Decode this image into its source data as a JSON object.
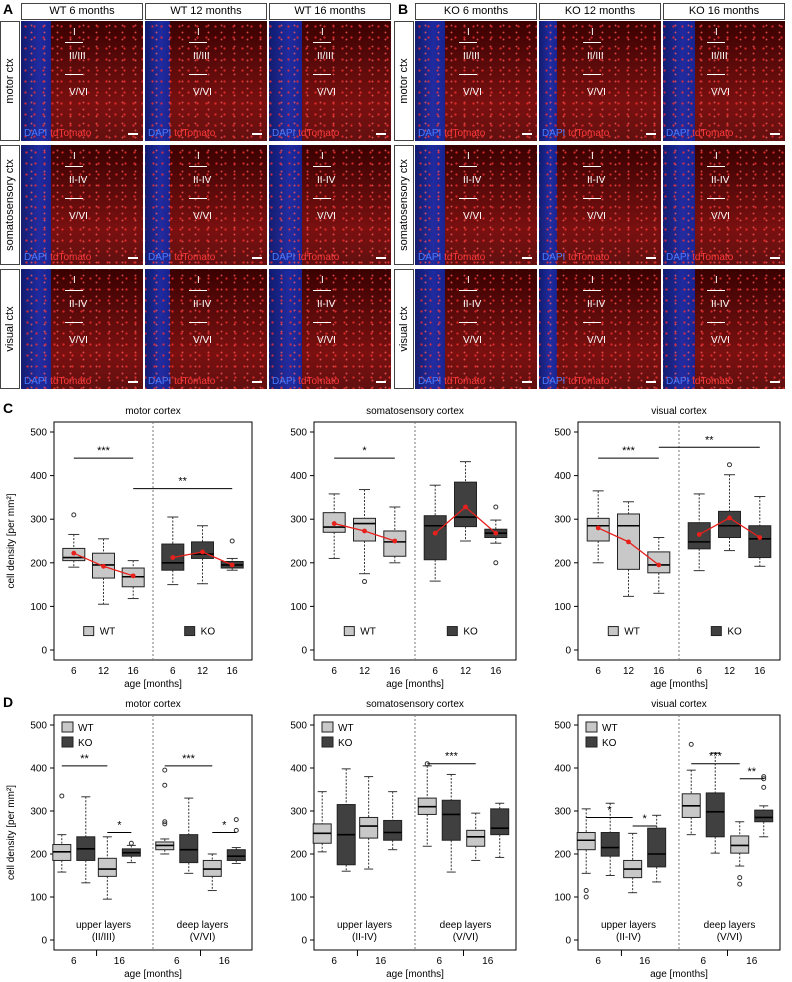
{
  "panel_labels": {
    "A": "A",
    "B": "B",
    "C": "C",
    "D": "D"
  },
  "micro": {
    "wt_cols": [
      "WT 6 months",
      "WT  12 months",
      "WT  16 months"
    ],
    "ko_cols": [
      "KO 6 months",
      "KO 12 months",
      "KO  16 months"
    ],
    "rows": [
      "motor ctx",
      "somatosensory  ctx",
      "visual ctx"
    ],
    "layer_sets": [
      [
        "I",
        "II/III",
        "V/VI"
      ],
      [
        "I",
        "II-IV",
        "V/VI"
      ],
      [
        "I",
        "II-IV",
        "V/VI"
      ]
    ],
    "dapi": "DAPI",
    "tdtomato": "tdTomato"
  },
  "colors": {
    "wt_box": "#c8c8c8",
    "ko_box": "#404040",
    "mean": "#e8201c"
  },
  "chart_data": [
    {
      "type": "box",
      "panel": "C",
      "title": "motor cortex",
      "ylabel": "cell density [per mm²]",
      "xlabel": "age [months]",
      "ylim": [
        0,
        500
      ],
      "yticks": [
        0,
        100,
        200,
        300,
        400,
        500
      ],
      "groups": [
        "6",
        "12",
        "16",
        "6",
        "12",
        "16"
      ],
      "legend": [
        "WT",
        "KO"
      ],
      "boxes": [
        {
          "group": "WT",
          "x": "6",
          "min": 190,
          "q1": 205,
          "median": 212,
          "q3": 233,
          "max": 265,
          "mean": 222,
          "outliers": [
            310
          ]
        },
        {
          "group": "WT",
          "x": "12",
          "min": 105,
          "q1": 165,
          "median": 195,
          "q3": 222,
          "max": 255,
          "mean": 192,
          "outliers": []
        },
        {
          "group": "WT",
          "x": "16",
          "min": 118,
          "q1": 145,
          "median": 168,
          "q3": 188,
          "max": 205,
          "mean": 170,
          "outliers": []
        },
        {
          "group": "KO",
          "x": "6",
          "min": 150,
          "q1": 183,
          "median": 200,
          "q3": 243,
          "max": 305,
          "mean": 212,
          "outliers": []
        },
        {
          "group": "KO",
          "x": "12",
          "min": 152,
          "q1": 210,
          "median": 220,
          "q3": 248,
          "max": 285,
          "mean": 225,
          "outliers": []
        },
        {
          "group": "KO",
          "x": "16",
          "min": 183,
          "q1": 188,
          "median": 195,
          "q3": 203,
          "max": 210,
          "mean": 195,
          "outliers": [
            250
          ]
        }
      ],
      "mean_lines": [
        [
          0,
          1,
          2
        ],
        [
          3,
          4,
          5
        ]
      ],
      "sig": [
        {
          "from": 0,
          "to": 2,
          "y": 440,
          "label": "***"
        },
        {
          "from": 2,
          "to": 5,
          "y": 370,
          "label": "**"
        }
      ]
    },
    {
      "type": "box",
      "panel": "C",
      "title": "somatosensory cortex",
      "ylabel": "",
      "xlabel": "age [months]",
      "ylim": [
        0,
        500
      ],
      "yticks": [
        0,
        100,
        200,
        300,
        400,
        500
      ],
      "groups": [
        "6",
        "12",
        "16",
        "6",
        "12",
        "16"
      ],
      "legend": [
        "WT",
        "KO"
      ],
      "boxes": [
        {
          "group": "WT",
          "x": "6",
          "min": 210,
          "q1": 270,
          "median": 282,
          "q3": 315,
          "max": 358,
          "mean": 290,
          "outliers": []
        },
        {
          "group": "WT",
          "x": "12",
          "min": 175,
          "q1": 250,
          "median": 290,
          "q3": 302,
          "max": 368,
          "mean": 273,
          "outliers": [
            157
          ]
        },
        {
          "group": "WT",
          "x": "16",
          "min": 200,
          "q1": 215,
          "median": 248,
          "q3": 273,
          "max": 328,
          "mean": 250,
          "outliers": []
        },
        {
          "group": "KO",
          "x": "6",
          "min": 158,
          "q1": 207,
          "median": 285,
          "q3": 308,
          "max": 378,
          "mean": 268,
          "outliers": []
        },
        {
          "group": "KO",
          "x": "12",
          "min": 250,
          "q1": 283,
          "median": 305,
          "q3": 385,
          "max": 432,
          "mean": 328,
          "outliers": []
        },
        {
          "group": "KO",
          "x": "16",
          "min": 245,
          "q1": 258,
          "median": 268,
          "q3": 277,
          "max": 298,
          "mean": 268,
          "outliers": [
            200,
            328
          ]
        }
      ],
      "mean_lines": [
        [
          0,
          1,
          2
        ],
        [
          3,
          4,
          5
        ]
      ],
      "sig": [
        {
          "from": 0,
          "to": 2,
          "y": 440,
          "label": "*"
        }
      ]
    },
    {
      "type": "box",
      "panel": "C",
      "title": "visual cortex",
      "ylabel": "",
      "xlabel": "age [months]",
      "ylim": [
        0,
        500
      ],
      "yticks": [
        0,
        100,
        200,
        300,
        400,
        500
      ],
      "groups": [
        "6",
        "12",
        "16",
        "6",
        "12",
        "16"
      ],
      "legend": [
        "WT",
        "KO"
      ],
      "boxes": [
        {
          "group": "WT",
          "x": "6",
          "min": 200,
          "q1": 250,
          "median": 285,
          "q3": 302,
          "max": 365,
          "mean": 280,
          "outliers": []
        },
        {
          "group": "WT",
          "x": "12",
          "min": 123,
          "q1": 185,
          "median": 285,
          "q3": 312,
          "max": 340,
          "mean": 248,
          "outliers": []
        },
        {
          "group": "WT",
          "x": "16",
          "min": 130,
          "q1": 177,
          "median": 195,
          "q3": 225,
          "max": 258,
          "mean": 195,
          "outliers": []
        },
        {
          "group": "KO",
          "x": "6",
          "min": 182,
          "q1": 232,
          "median": 248,
          "q3": 292,
          "max": 358,
          "mean": 265,
          "outliers": []
        },
        {
          "group": "KO",
          "x": "12",
          "min": 228,
          "q1": 258,
          "median": 285,
          "q3": 318,
          "max": 402,
          "mean": 303,
          "outliers": [
            425
          ]
        },
        {
          "group": "KO",
          "x": "16",
          "min": 192,
          "q1": 212,
          "median": 255,
          "q3": 285,
          "max": 352,
          "mean": 258,
          "outliers": []
        }
      ],
      "mean_lines": [
        [
          0,
          1,
          2
        ],
        [
          3,
          4,
          5
        ]
      ],
      "sig": [
        {
          "from": 0,
          "to": 2,
          "y": 440,
          "label": "***"
        },
        {
          "from": 2,
          "to": 5,
          "y": 465,
          "label": "**"
        }
      ]
    },
    {
      "type": "box",
      "panel": "D",
      "title": "motor cortex",
      "ylabel": "cell density [per mm²]",
      "xlabel": "age [months]",
      "ylim": [
        0,
        500
      ],
      "yticks": [
        0,
        100,
        200,
        300,
        400,
        500
      ],
      "groups": [
        "6",
        "16",
        "6",
        "16"
      ],
      "legend": [
        "WT",
        "KO"
      ],
      "region_labels": [
        [
          "upper layers",
          "(II/III)"
        ],
        [
          "deep layers",
          "(V/VI)"
        ]
      ],
      "boxes": [
        {
          "group": "WT",
          "x": "6",
          "min": 158,
          "q1": 185,
          "median": 205,
          "q3": 222,
          "max": 245,
          "mean": 205,
          "outliers": [
            335
          ]
        },
        {
          "group": "KO",
          "x": "6",
          "min": 133,
          "q1": 185,
          "median": 212,
          "q3": 240,
          "max": 333,
          "mean": 212,
          "outliers": []
        },
        {
          "group": "WT",
          "x": "16",
          "min": 95,
          "q1": 148,
          "median": 165,
          "q3": 190,
          "max": 240,
          "mean": 168,
          "outliers": []
        },
        {
          "group": "KO",
          "x": "16",
          "min": 180,
          "q1": 195,
          "median": 203,
          "q3": 212,
          "max": 220,
          "mean": 203,
          "outliers": [
            225
          ]
        },
        {
          "group": "WT",
          "x": "6",
          "min": 200,
          "q1": 210,
          "median": 220,
          "q3": 228,
          "max": 235,
          "mean": 218,
          "outliers": [
            395,
            360,
            270,
            275
          ]
        },
        {
          "group": "KO",
          "x": "6",
          "min": 155,
          "q1": 180,
          "median": 210,
          "q3": 245,
          "max": 330,
          "mean": 212,
          "outliers": []
        },
        {
          "group": "WT",
          "x": "16",
          "min": 115,
          "q1": 148,
          "median": 165,
          "q3": 185,
          "max": 200,
          "mean": 167,
          "outliers": []
        },
        {
          "group": "KO",
          "x": "16",
          "min": 178,
          "q1": 185,
          "median": 195,
          "q3": 210,
          "max": 215,
          "mean": 196,
          "outliers": [
            255,
            280
          ]
        }
      ],
      "sig": [
        {
          "from": 0,
          "to": 2,
          "y": 405,
          "label": "**"
        },
        {
          "from": 2,
          "to": 3,
          "y": 250,
          "label": "*"
        },
        {
          "from": 4,
          "to": 6,
          "y": 405,
          "label": "***"
        },
        {
          "from": 6,
          "to": 7,
          "y": 250,
          "label": "*"
        }
      ]
    },
    {
      "type": "box",
      "panel": "D",
      "title": "somatosensory cortex",
      "ylabel": "",
      "xlabel": "age [months]",
      "ylim": [
        0,
        500
      ],
      "yticks": [
        0,
        100,
        200,
        300,
        400,
        500
      ],
      "groups": [
        "6",
        "16",
        "6",
        "16"
      ],
      "legend": [
        "WT",
        "KO"
      ],
      "region_labels": [
        [
          "upper layers",
          "(II-IV)"
        ],
        [
          "deep layers",
          "(V/VI)"
        ]
      ],
      "boxes": [
        {
          "group": "WT",
          "x": "6",
          "min": 205,
          "q1": 225,
          "median": 248,
          "q3": 270,
          "max": 345,
          "mean": 248,
          "outliers": []
        },
        {
          "group": "KO",
          "x": "6",
          "min": 160,
          "q1": 175,
          "median": 245,
          "q3": 315,
          "max": 398,
          "mean": 245,
          "outliers": []
        },
        {
          "group": "WT",
          "x": "16",
          "min": 165,
          "q1": 237,
          "median": 265,
          "q3": 285,
          "max": 380,
          "mean": 265,
          "outliers": []
        },
        {
          "group": "KO",
          "x": "16",
          "min": 210,
          "q1": 232,
          "median": 250,
          "q3": 278,
          "max": 345,
          "mean": 252,
          "outliers": []
        },
        {
          "group": "WT",
          "x": "6",
          "min": 218,
          "q1": 292,
          "median": 310,
          "q3": 330,
          "max": 405,
          "mean": 310,
          "outliers": [
            410
          ]
        },
        {
          "group": "KO",
          "x": "6",
          "min": 158,
          "q1": 232,
          "median": 292,
          "q3": 325,
          "max": 385,
          "mean": 290,
          "outliers": []
        },
        {
          "group": "WT",
          "x": "16",
          "min": 185,
          "q1": 218,
          "median": 240,
          "q3": 255,
          "max": 295,
          "mean": 240,
          "outliers": []
        },
        {
          "group": "KO",
          "x": "16",
          "min": 192,
          "q1": 245,
          "median": 260,
          "q3": 305,
          "max": 318,
          "mean": 268,
          "outliers": []
        }
      ],
      "sig": [
        {
          "from": 4,
          "to": 6,
          "y": 410,
          "label": "***"
        }
      ]
    },
    {
      "type": "box",
      "panel": "D",
      "title": "visual cortex",
      "ylabel": "",
      "xlabel": "age [months]",
      "ylim": [
        0,
        500
      ],
      "yticks": [
        0,
        100,
        200,
        300,
        400,
        500
      ],
      "groups": [
        "6",
        "16",
        "6",
        "16"
      ],
      "legend": [
        "WT",
        "KO"
      ],
      "region_labels": [
        [
          "upper layers",
          "(II-IV)"
        ],
        [
          "deep layers",
          "(V/VI)"
        ]
      ],
      "boxes": [
        {
          "group": "WT",
          "x": "6",
          "min": 155,
          "q1": 210,
          "median": 232,
          "q3": 250,
          "max": 305,
          "mean": 232,
          "outliers": [
            100,
            115
          ]
        },
        {
          "group": "KO",
          "x": "6",
          "min": 150,
          "q1": 195,
          "median": 215,
          "q3": 250,
          "max": 318,
          "mean": 220,
          "outliers": []
        },
        {
          "group": "WT",
          "x": "16",
          "min": 110,
          "q1": 145,
          "median": 165,
          "q3": 185,
          "max": 248,
          "mean": 165,
          "outliers": []
        },
        {
          "group": "KO",
          "x": "16",
          "min": 135,
          "q1": 170,
          "median": 200,
          "q3": 260,
          "max": 290,
          "mean": 210,
          "outliers": []
        },
        {
          "group": "WT",
          "x": "6",
          "min": 245,
          "q1": 285,
          "median": 312,
          "q3": 340,
          "max": 395,
          "mean": 312,
          "outliers": [
            455
          ]
        },
        {
          "group": "KO",
          "x": "6",
          "min": 202,
          "q1": 240,
          "median": 298,
          "q3": 342,
          "max": 435,
          "mean": 295,
          "outliers": []
        },
        {
          "group": "WT",
          "x": "16",
          "min": 172,
          "q1": 202,
          "median": 220,
          "q3": 242,
          "max": 275,
          "mean": 222,
          "outliers": [
            130,
            145
          ]
        },
        {
          "group": "KO",
          "x": "16",
          "min": 240,
          "q1": 275,
          "median": 285,
          "q3": 302,
          "max": 312,
          "mean": 287,
          "outliers": [
            355,
            375,
            380
          ]
        }
      ],
      "sig": [
        {
          "from": 0,
          "to": 2,
          "y": 285,
          "label": "*"
        },
        {
          "from": 2,
          "to": 3,
          "y": 265,
          "label": "*"
        },
        {
          "from": 4,
          "to": 6,
          "y": 410,
          "label": "***"
        },
        {
          "from": 6,
          "to": 7,
          "y": 375,
          "label": "**"
        }
      ]
    }
  ]
}
